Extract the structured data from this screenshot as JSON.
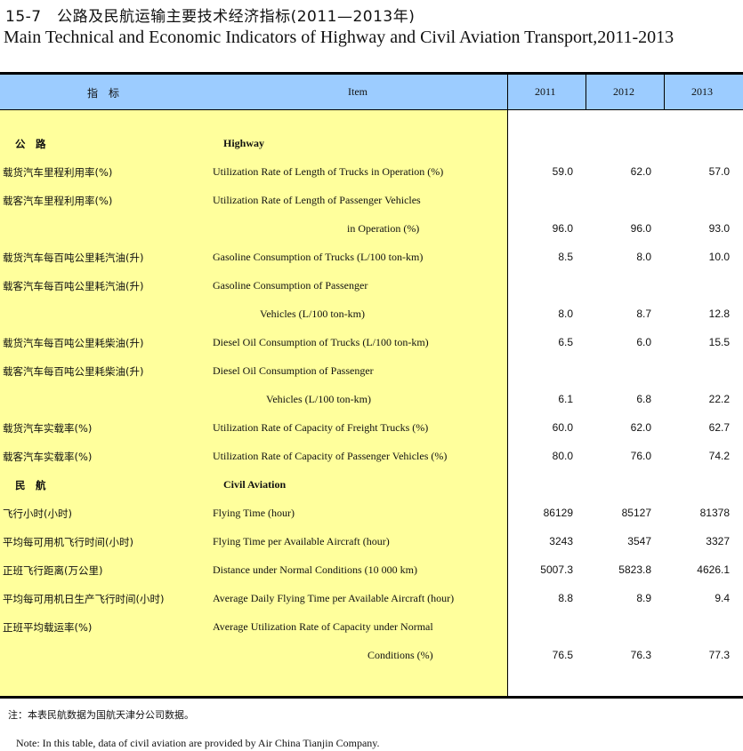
{
  "title_cn": "15-7　公路及民航运输主要技术经济指标(2011—2013年)",
  "title_en": "Main Technical and Economic Indicators of Highway and Civil Aviation Transport,2011-2013",
  "header": {
    "cn": "指　标",
    "en": "Item",
    "years": [
      "2011",
      "2012",
      "2013"
    ]
  },
  "rows": [
    {
      "cn": "公　路",
      "en": "Highway",
      "section": true
    },
    {
      "cn": "载货汽车里程利用率(%)",
      "en": "Utilization Rate of Length of Trucks in Operation (%)",
      "values": [
        "59.0",
        "62.0",
        "57.0"
      ]
    },
    {
      "cn": "载客汽车里程利用率(%)",
      "en": "Utilization Rate of Length of Passenger Vehicles"
    },
    {
      "cn": "",
      "en": "in Operation (%)",
      "values": [
        "96.0",
        "96.0",
        "93.0"
      ]
    },
    {
      "cn": "载货汽车每百吨公里耗汽油(升)",
      "en": "Gasoline Consumption of Trucks (L/100 ton-km)",
      "values": [
        "8.5",
        "8.0",
        "10.0"
      ]
    },
    {
      "cn": "载客汽车每百吨公里耗汽油(升)",
      "en": "Gasoline Consumption of Passenger"
    },
    {
      "cn": "",
      "en": "Vehicles (L/100 ton-km)",
      "values": [
        "8.0",
        "8.7",
        "12.8"
      ]
    },
    {
      "cn": "载货汽车每百吨公里耗柴油(升)",
      "en": "Diesel Oil Consumption of Trucks (L/100 ton-km)",
      "values": [
        "6.5",
        "6.0",
        "15.5"
      ]
    },
    {
      "cn": "载客汽车每百吨公里耗柴油(升)",
      "en": "Diesel Oil Consumption of Passenger"
    },
    {
      "cn": "",
      "en": "Vehicles (L/100 ton-km)",
      "values": [
        "6.1",
        "6.8",
        "22.2"
      ]
    },
    {
      "cn": "载货汽车实载率(%)",
      "en": "Utilization Rate of Capacity of Freight Trucks (%)",
      "values": [
        "60.0",
        "62.0",
        "62.7"
      ]
    },
    {
      "cn": "载客汽车实载率(%)",
      "en": "Utilization Rate of Capacity of Passenger Vehicles (%)",
      "values": [
        "80.0",
        "76.0",
        "74.2"
      ]
    },
    {
      "cn": "民　航",
      "en": "Civil Aviation",
      "section": true
    },
    {
      "cn": "飞行小时(小时)",
      "en": "Flying Time (hour)",
      "values": [
        "86129",
        "85127",
        "81378"
      ]
    },
    {
      "cn": "平均每可用机飞行时间(小时)",
      "en": "Flying Time per Available Aircraft (hour)",
      "values": [
        "3243",
        "3547",
        "3327"
      ]
    },
    {
      "cn": "正班飞行距离(万公里)",
      "en": "Distance under Normal Conditions (10 000 km)",
      "values": [
        "5007.3",
        "5823.8",
        "4626.1"
      ]
    },
    {
      "cn": "平均每可用机日生产飞行时间(小时)",
      "en": "Average Daily Flying Time per Available Aircraft (hour)",
      "values": [
        "8.8",
        "8.9",
        "9.4"
      ]
    },
    {
      "cn": "正班平均载运率(%)",
      "en": "Average Utilization Rate of Capacity under Normal"
    },
    {
      "cn": "",
      "en": "Conditions (%)",
      "values": [
        "76.5",
        "76.3",
        "77.3"
      ]
    }
  ],
  "note_cn": "注：本表民航数据为国航天津分公司数据。",
  "note_en": "Note: In this table, data of civil aviation are provided by Air China Tianjin Company.",
  "colors": {
    "header_bg": "#9cccff",
    "item_bg": "#ffff9c"
  }
}
